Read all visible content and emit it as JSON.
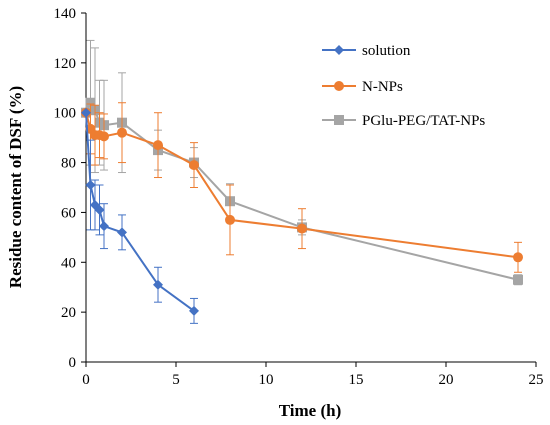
{
  "chart_data": {
    "type": "line",
    "xlabel": "Time (h)",
    "ylabel": "Residue content of DSF (%)",
    "xlim": [
      0,
      25
    ],
    "ylim": [
      0,
      140
    ],
    "xticks": [
      0,
      5,
      10,
      15,
      20,
      25
    ],
    "yticks": [
      0,
      20,
      40,
      60,
      80,
      100,
      120,
      140
    ],
    "grid": false,
    "legend_position": "top-right",
    "series": [
      {
        "name": "solution",
        "color": "#4472C4",
        "marker": "diamond",
        "x": [
          0,
          0.25,
          0.5,
          0.75,
          1,
          2,
          4,
          6
        ],
        "y": [
          100,
          71,
          63,
          61,
          54.5,
          52,
          31,
          20.5
        ],
        "err": [
          0,
          18,
          10,
          10,
          9,
          7,
          7,
          5
        ]
      },
      {
        "name": "N-NPs",
        "color": "#ED7D31",
        "marker": "circle",
        "x": [
          0,
          0.25,
          0.5,
          0.75,
          1,
          2,
          4,
          6,
          8,
          12,
          24
        ],
        "y": [
          100,
          93.5,
          91,
          91,
          90.5,
          92,
          87,
          79,
          57,
          53.5,
          42
        ],
        "err": [
          0,
          10,
          12,
          9,
          9,
          12,
          13,
          9,
          14,
          8,
          6
        ]
      },
      {
        "name": "PGlu-PEG/TAT-NPs",
        "color": "#A5A5A5",
        "marker": "square",
        "x": [
          0,
          0.25,
          0.5,
          0.75,
          1,
          2,
          4,
          6,
          8,
          12,
          24
        ],
        "y": [
          100,
          104,
          101,
          96,
          95,
          96,
          85,
          80,
          64.5,
          54,
          33
        ],
        "err": [
          0,
          25,
          25,
          17,
          18,
          20,
          8,
          6,
          7,
          3,
          2
        ]
      }
    ]
  }
}
